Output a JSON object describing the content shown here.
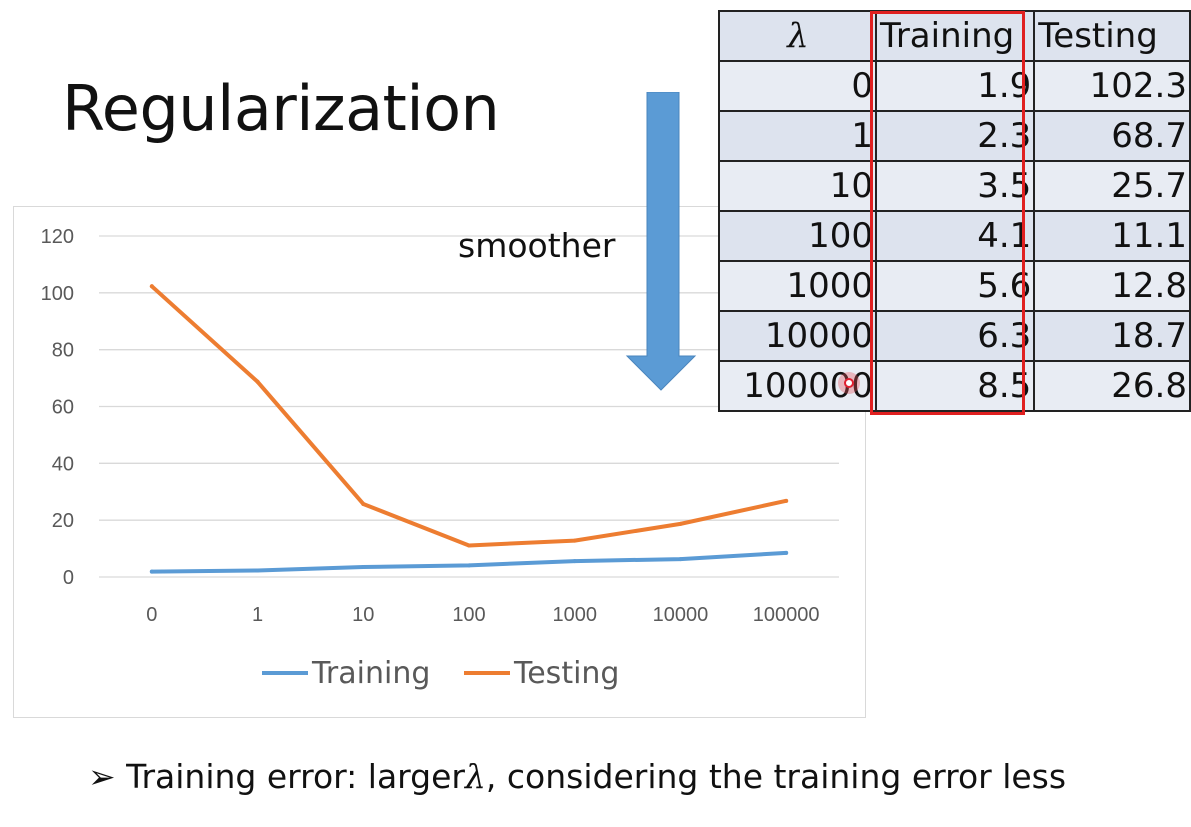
{
  "slide": {
    "title": "Regularization",
    "arrow_label": "smoother",
    "bullet_marker": "➢",
    "bullet_text_before": "Training error: larger",
    "bullet_lambda": "λ",
    "bullet_text_after": ", considering the training error less"
  },
  "table": {
    "headers": [
      "λ",
      "Training",
      "Testing"
    ],
    "rows": [
      [
        "0",
        "1.9",
        "102.3"
      ],
      [
        "1",
        "2.3",
        "68.7"
      ],
      [
        "10",
        "3.5",
        "25.7"
      ],
      [
        "100",
        "4.1",
        "11.1"
      ],
      [
        "1000",
        "5.6",
        "12.8"
      ],
      [
        "10000",
        "6.3",
        "18.7"
      ],
      [
        "100000",
        "8.5",
        "26.8"
      ]
    ]
  },
  "colors": {
    "training": "#5b9bd5",
    "testing": "#ed7d31",
    "arrow": "#5b9bd5",
    "highlight": "#e02020"
  },
  "chart_data": {
    "type": "line",
    "categories": [
      "0",
      "1",
      "10",
      "100",
      "1000",
      "10000",
      "100000"
    ],
    "series": [
      {
        "name": "Training",
        "values": [
          1.9,
          2.3,
          3.5,
          4.1,
          5.6,
          6.3,
          8.5
        ]
      },
      {
        "name": "Testing",
        "values": [
          102.3,
          68.7,
          25.7,
          11.1,
          12.8,
          18.7,
          26.8
        ]
      }
    ],
    "ylim": [
      0,
      120
    ],
    "yticks": [
      0,
      20,
      40,
      60,
      80,
      100,
      120
    ],
    "grid": true,
    "legend": "bottom"
  }
}
